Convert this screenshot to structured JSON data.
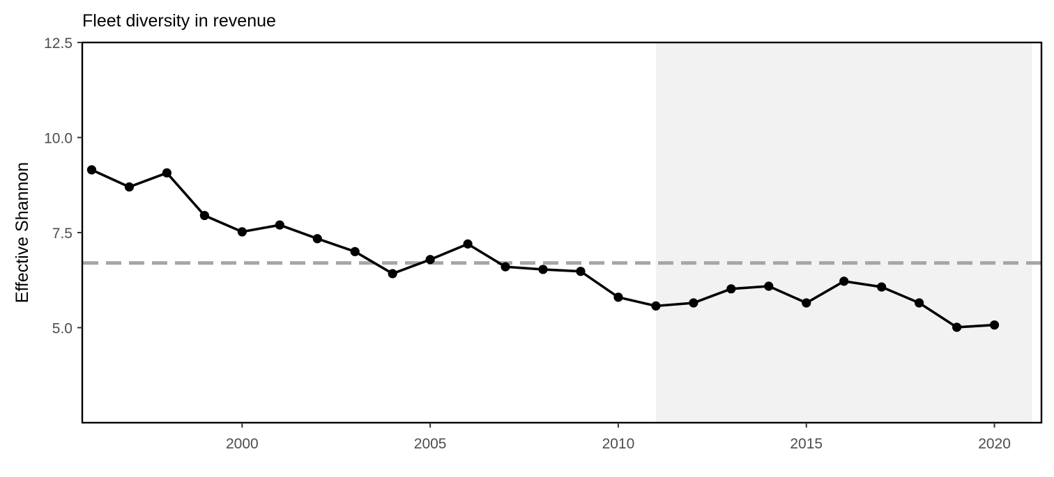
{
  "chart_data": {
    "type": "line",
    "title": "Fleet diversity in revenue",
    "xlabel": "",
    "ylabel": "Effective Shannon",
    "x": [
      1996,
      1997,
      1998,
      1999,
      2000,
      2001,
      2002,
      2003,
      2004,
      2005,
      2006,
      2007,
      2008,
      2009,
      2010,
      2011,
      2012,
      2013,
      2014,
      2015,
      2016,
      2017,
      2018,
      2019,
      2020
    ],
    "series": [
      {
        "values": [
          9.15,
          8.7,
          9.07,
          7.95,
          7.52,
          7.7,
          7.34,
          7.0,
          6.42,
          6.79,
          7.2,
          6.6,
          6.53,
          6.48,
          5.8,
          5.57,
          5.65,
          6.02,
          6.09,
          5.65,
          6.22,
          6.07,
          5.65,
          5.01,
          5.07
        ],
        "color": "#000000"
      }
    ],
    "reference_line": {
      "value": 6.7,
      "style": "dashed",
      "color": "#a6a6a6"
    },
    "shaded_region": {
      "x_range": [
        2011,
        2021
      ],
      "color": "#f2f2f2"
    },
    "xlim": [
      1995.75,
      2021.25
    ],
    "ylim": [
      2.5,
      12.5
    ],
    "x_ticks": [
      2000,
      2005,
      2010,
      2015,
      2020
    ],
    "x_tick_labels": [
      "2000",
      "2005",
      "2010",
      "2015",
      "2020"
    ],
    "y_ticks": [
      5.0,
      7.5,
      10.0,
      12.5
    ],
    "y_tick_labels": [
      "5.0",
      "7.5",
      "10.0",
      "12.5"
    ],
    "grid": false,
    "legend": "none"
  }
}
